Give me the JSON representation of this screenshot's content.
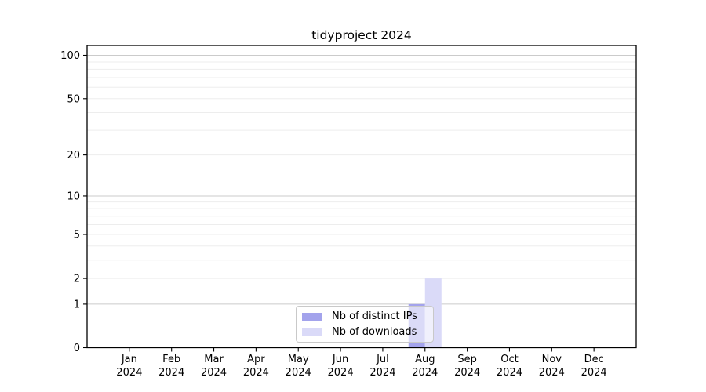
{
  "chart_data": {
    "type": "bar",
    "title": "tidyproject 2024",
    "categories": [
      "Jan 2024",
      "Feb 2024",
      "Mar 2024",
      "Apr 2024",
      "May 2024",
      "Jun 2024",
      "Jul 2024",
      "Aug 2024",
      "Sep 2024",
      "Oct 2024",
      "Nov 2024",
      "Dec 2024"
    ],
    "series": [
      {
        "name": "Nb of distinct IPs",
        "color": "#a3a3ec",
        "values": [
          0,
          0,
          0,
          0,
          0,
          0,
          0,
          1,
          0,
          0,
          0,
          0
        ]
      },
      {
        "name": "Nb of downloads",
        "color": "#dadaf8",
        "values": [
          0,
          0,
          0,
          0,
          0,
          0,
          0,
          2,
          0,
          0,
          0,
          0
        ]
      }
    ],
    "yscale": "log1p",
    "y_ticks": [
      0,
      1,
      2,
      5,
      10,
      20,
      50,
      100
    ],
    "y_minor_gridlines": [
      2,
      3,
      4,
      5,
      6,
      7,
      8,
      9,
      20,
      30,
      40,
      50,
      60,
      70,
      80,
      90
    ],
    "y_major_gridlines": [
      1,
      10,
      100
    ],
    "ylim": [
      0,
      116
    ],
    "grid": "horizontal",
    "legend_position": "bottom-center-inside",
    "colors": {
      "grid_major": "#cbcbcb",
      "grid_minor": "#ededed",
      "axis": "#000000",
      "text": "#000000"
    }
  },
  "axes": {
    "months": [
      "Jan",
      "Feb",
      "Mar",
      "Apr",
      "May",
      "Jun",
      "Jul",
      "Aug",
      "Sep",
      "Oct",
      "Nov",
      "Dec"
    ],
    "year": "2024",
    "y_tick_labels": [
      "0",
      "1",
      "2",
      "5",
      "10",
      "20",
      "50",
      "100"
    ]
  }
}
